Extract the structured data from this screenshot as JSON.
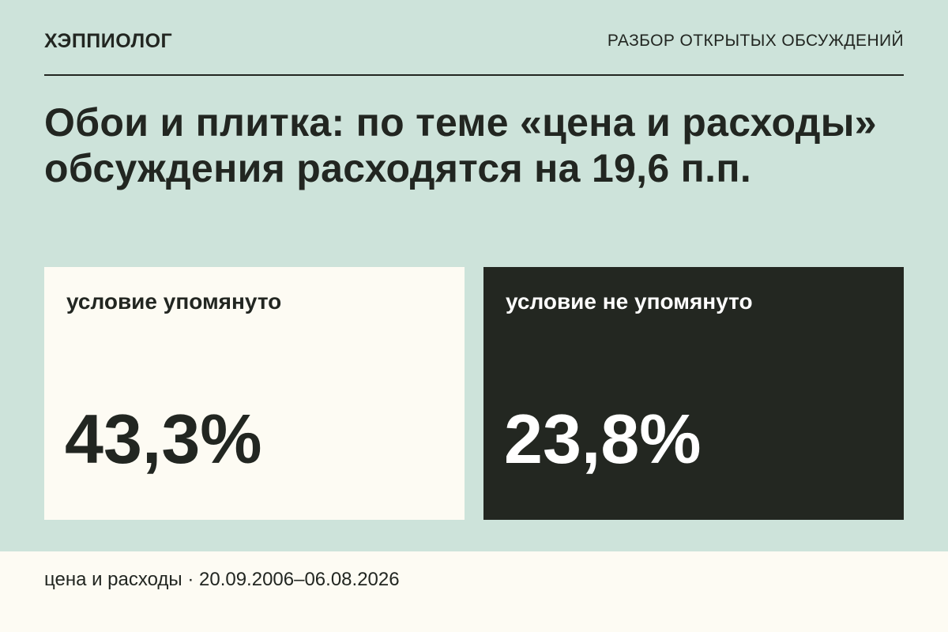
{
  "header": {
    "brand": "ХЭППИОЛОГ",
    "section_label": "РАЗБОР ОТКРЫТЫХ ОБСУЖДЕНИЙ"
  },
  "headline": "Обои и плитка: по теме «цена и расходы» обсуждения расходятся на 19,6 п.п.",
  "cards": [
    {
      "label": "условие упомянуто",
      "value": "43,3%"
    },
    {
      "label": "условие не упомянуто",
      "value": "23,8%"
    }
  ],
  "footer": {
    "text": "цена и расходы · 20.09.2006–06.08.2026"
  },
  "colors": {
    "background": "#cde3da",
    "light_panel": "#fdfbf3",
    "dark_panel": "#232721",
    "text_dark": "#222621",
    "text_light": "#ffffff"
  }
}
